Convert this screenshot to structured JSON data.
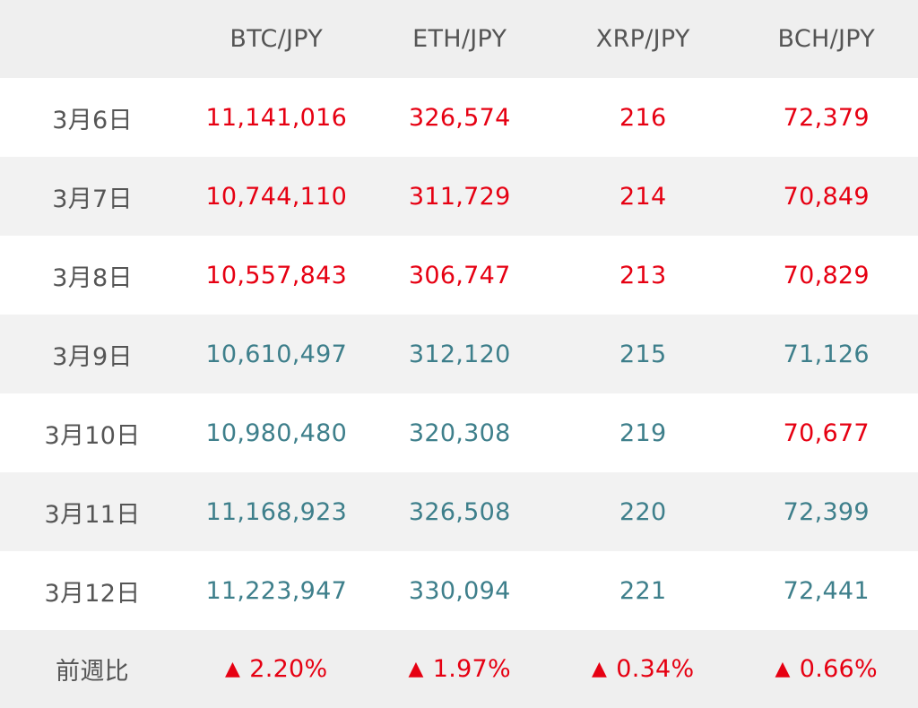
{
  "columns": [
    "",
    "BTC/JPY",
    "ETH/JPY",
    "XRP/JPY",
    "BCH/JPY"
  ],
  "colors": {
    "decrease": "#e60012",
    "increase": "#3e7f8b",
    "label": "#555555"
  },
  "rows": [
    {
      "date": "3月6日",
      "values": [
        "11,141,016",
        "326,574",
        "216",
        "72,379"
      ],
      "trend": [
        "down",
        "down",
        "down",
        "down"
      ]
    },
    {
      "date": "3月7日",
      "values": [
        "10,744,110",
        "311,729",
        "214",
        "70,849"
      ],
      "trend": [
        "down",
        "down",
        "down",
        "down"
      ]
    },
    {
      "date": "3月8日",
      "values": [
        "10,557,843",
        "306,747",
        "213",
        "70,829"
      ],
      "trend": [
        "down",
        "down",
        "down",
        "down"
      ]
    },
    {
      "date": "3月9日",
      "values": [
        "10,610,497",
        "312,120",
        "215",
        "71,126"
      ],
      "trend": [
        "up",
        "up",
        "up",
        "up"
      ]
    },
    {
      "date": "3月10日",
      "values": [
        "10,980,480",
        "320,308",
        "219",
        "70,677"
      ],
      "trend": [
        "up",
        "up",
        "up",
        "down"
      ]
    },
    {
      "date": "3月11日",
      "values": [
        "11,168,923",
        "326,508",
        "220",
        "72,399"
      ],
      "trend": [
        "up",
        "up",
        "up",
        "up"
      ]
    },
    {
      "date": "3月12日",
      "values": [
        "11,223,947",
        "330,094",
        "221",
        "72,441"
      ],
      "trend": [
        "up",
        "up",
        "up",
        "up"
      ]
    }
  ],
  "summary": {
    "label": "前週比",
    "arrow": "▲",
    "values": [
      "2.20%",
      "1.97%",
      "0.34%",
      "0.66%"
    ]
  }
}
